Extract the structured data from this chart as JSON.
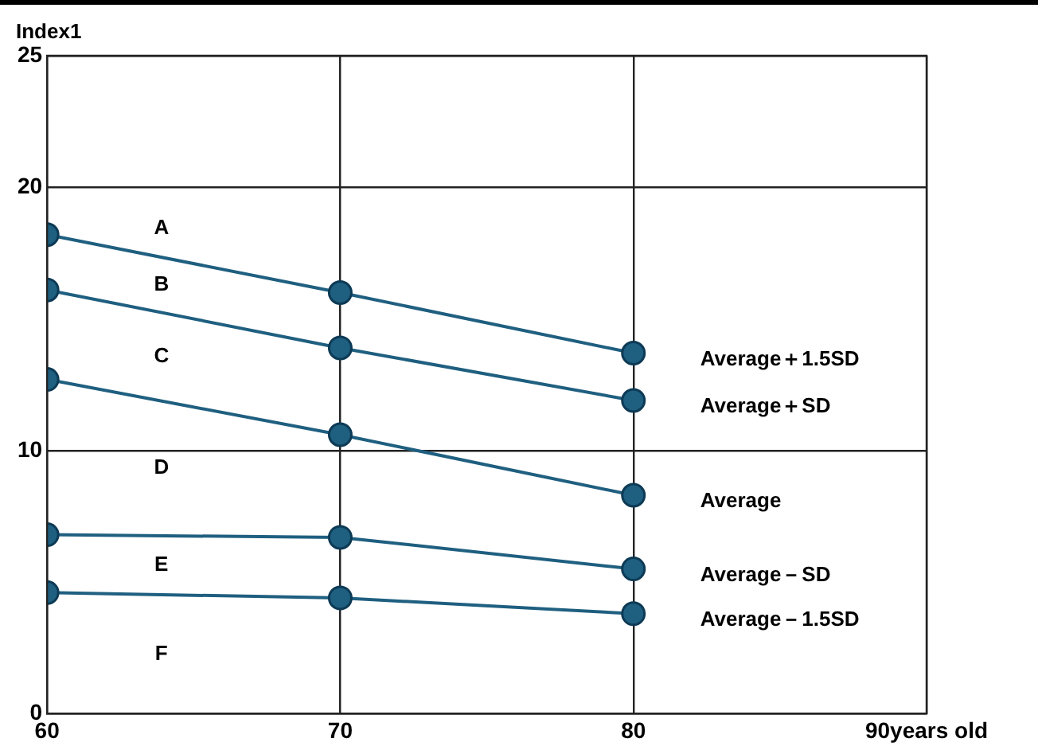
{
  "chart_data": {
    "type": "line",
    "ylabel": "Index1",
    "x": [
      60,
      70,
      80
    ],
    "series": [
      {
        "name": "Average＋1.5SD",
        "color": "#1f5f80",
        "values": [
          18.2,
          16.0,
          13.7
        ]
      },
      {
        "name": "Average＋SD",
        "color": "#1f5f80",
        "values": [
          16.1,
          13.9,
          11.9
        ]
      },
      {
        "name": "Average",
        "color": "#1f5f80",
        "values": [
          12.7,
          10.6,
          8.3
        ]
      },
      {
        "name": "Average－SD",
        "color": "#1f5f80",
        "values": [
          6.8,
          6.7,
          5.5
        ]
      },
      {
        "name": "Average－1.5SD",
        "color": "#1f5f80",
        "values": [
          4.6,
          4.4,
          3.8
        ]
      }
    ],
    "annotations": [
      "A",
      "B",
      "C",
      "D",
      "E",
      "F"
    ],
    "xlim": [
      60,
      90
    ],
    "xticks": [
      60,
      70,
      80,
      {
        "value": 90,
        "label": "90years old"
      }
    ],
    "ylim": [
      0,
      25
    ],
    "yticks": [
      0,
      10,
      20,
      25
    ],
    "grid": true,
    "legend": false,
    "marker": "circle",
    "line_style": "solid"
  }
}
